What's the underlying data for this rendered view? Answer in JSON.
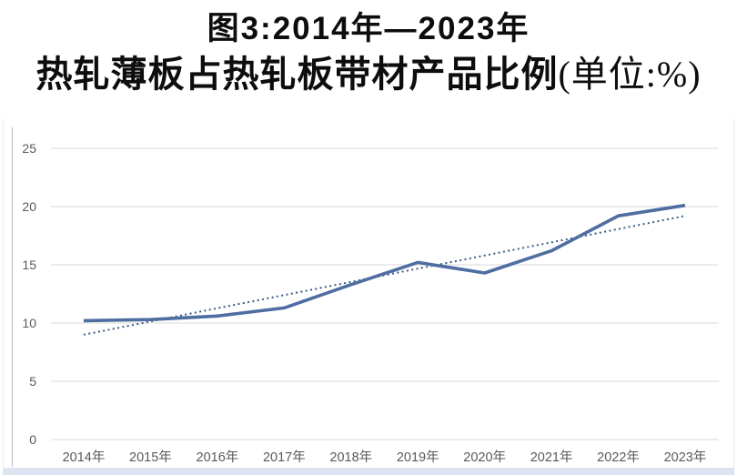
{
  "title": {
    "line1": "图3:2014年—2023年",
    "line2_main": "热轧薄板占热轧板带材产品比例",
    "line2_unit": "(单位:%)"
  },
  "colors": {
    "series_line": "#4e6da1",
    "trend_line": "#3d5a87",
    "gridline": "#d9d9d9",
    "axis_line": "#c6c6c6",
    "tick_text": "#595959",
    "title_text": "#0d0d0d",
    "bottom_strip": "#dce4f1"
  },
  "chart_data": {
    "type": "line",
    "title": "图3:2014年—2023年热轧薄板占热轧板带材产品比例(单位:%)",
    "categories": [
      "2014年",
      "2015年",
      "2016年",
      "2017年",
      "2018年",
      "2019年",
      "2020年",
      "2021年",
      "2022年",
      "2023年"
    ],
    "series": [
      {
        "name": "热轧薄板占热轧板带材产品比例",
        "style": "solid",
        "color": "#4e6da1",
        "values": [
          10.2,
          10.3,
          10.6,
          11.3,
          13.3,
          15.2,
          14.3,
          16.2,
          19.2,
          20.1
        ]
      },
      {
        "name": "线性趋势线",
        "style": "dotted",
        "color": "#3d5a87",
        "values": [
          9.0,
          10.13,
          11.27,
          12.4,
          13.53,
          14.67,
          15.8,
          16.93,
          18.07,
          19.2
        ]
      }
    ],
    "xlabel": "",
    "ylabel": "",
    "unit": "%",
    "ylim": [
      0,
      25
    ],
    "yticks": [
      0,
      5,
      10,
      15,
      20,
      25
    ],
    "grid": true,
    "legend": "none"
  }
}
